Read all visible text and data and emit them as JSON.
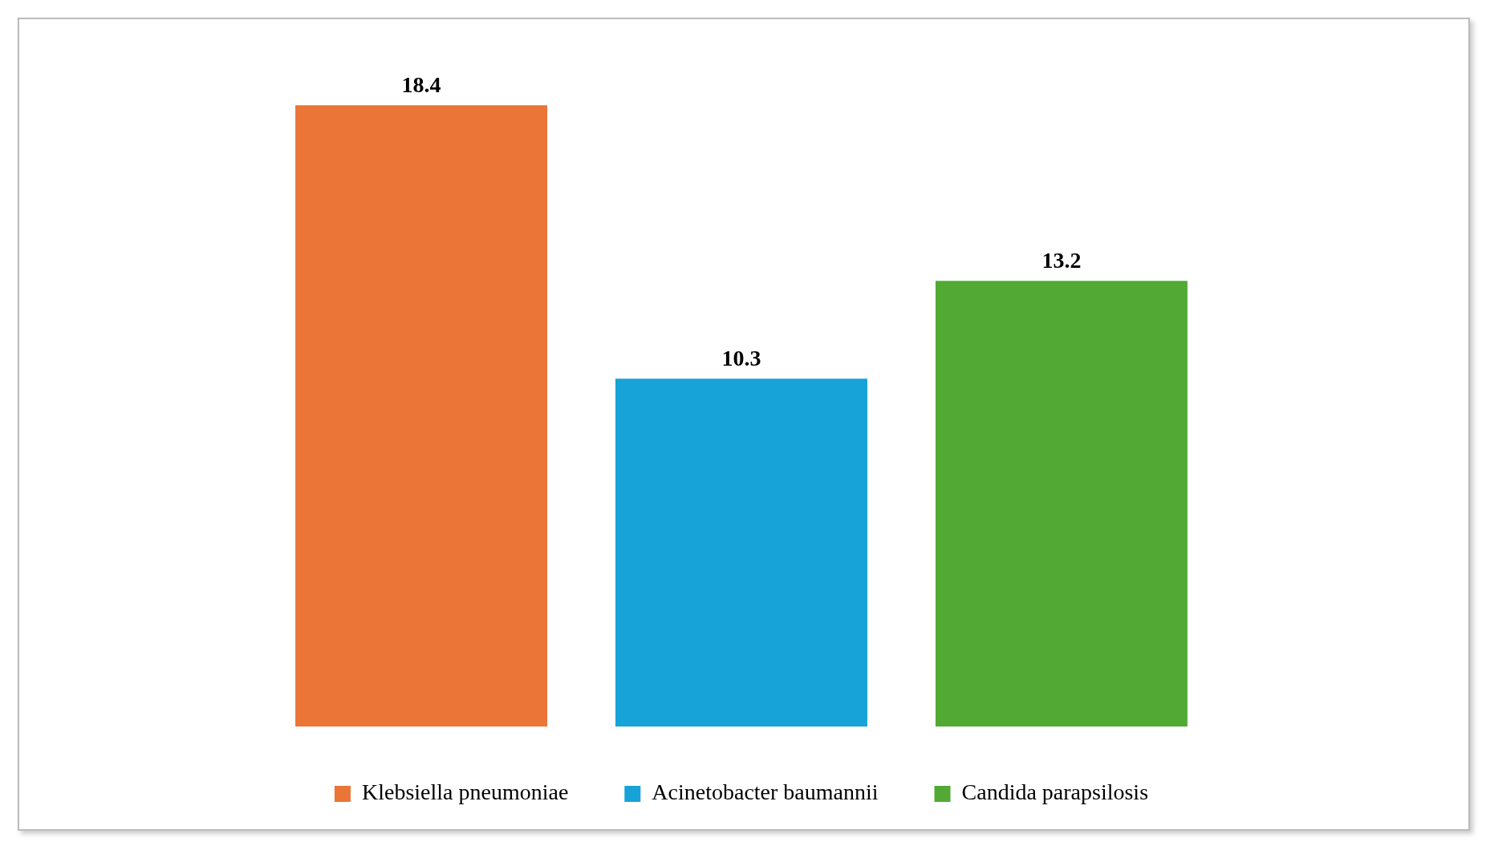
{
  "chart_data": {
    "type": "bar",
    "categories": [
      null
    ],
    "series": [
      {
        "name": "Klebsiella pneumoniae",
        "color": "#ea7537",
        "values": [
          18.4
        ]
      },
      {
        "name": "Acinetobacter baumannii",
        "color": "#17a2d8",
        "values": [
          10.3
        ]
      },
      {
        "name": "Candida parapsilosis",
        "color": "#52aa35",
        "values": [
          13.2
        ]
      }
    ],
    "data_labels": true,
    "legend": "bottom",
    "tick_labels": false
  }
}
